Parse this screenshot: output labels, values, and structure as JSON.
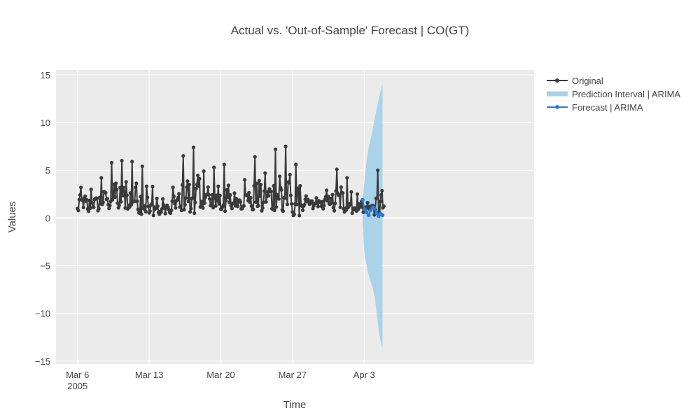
{
  "chart_data": {
    "type": "line",
    "title": "Actual vs. 'Out-of-Sample' Forecast | CO(GT)",
    "xlabel": "Time",
    "ylabel": "Values",
    "x_range_days": [
      -2.1,
      44.6
    ],
    "ylim": [
      -15.3,
      15.5
    ],
    "y_ticks": [
      15,
      10,
      5,
      0,
      -5,
      -10,
      -15
    ],
    "y_tick_labels": [
      "15",
      "10",
      "5",
      "0",
      "−5",
      "−10",
      "−15"
    ],
    "x_ticks": [
      {
        "day": 0,
        "label": "Mar 6",
        "sublabel": "2005"
      },
      {
        "day": 7,
        "label": "Mar 13",
        "sublabel": ""
      },
      {
        "day": 14,
        "label": "Mar 20",
        "sublabel": ""
      },
      {
        "day": 21,
        "label": "Mar 27",
        "sublabel": ""
      },
      {
        "day": 28,
        "label": "Apr 3",
        "sublabel": ""
      }
    ],
    "x_origin": "2005-03-06",
    "legend": {
      "position": "top-right",
      "items": [
        {
          "label": "Original",
          "kind": "line-marker",
          "color": "#3a3a3a"
        },
        {
          "label": "Prediction Interval | ARIMA",
          "kind": "band",
          "color": "#a6d2ea"
        },
        {
          "label": "Forecast | ARIMA",
          "kind": "line-marker",
          "color": "#2b7bd6"
        }
      ]
    },
    "original_daily": [
      {
        "day": 0,
        "mean": 1.8,
        "peak": 3.2,
        "low": 0.6
      },
      {
        "day": 1,
        "mean": 1.4,
        "peak": 3.0,
        "low": 0.5
      },
      {
        "day": 2,
        "mean": 1.6,
        "peak": 4.2,
        "low": 0.7
      },
      {
        "day": 3,
        "mean": 2.2,
        "peak": 5.8,
        "low": 0.9
      },
      {
        "day": 4,
        "mean": 2.3,
        "peak": 6.0,
        "low": 0.8
      },
      {
        "day": 5,
        "mean": 2.1,
        "peak": 5.9,
        "low": 0.9
      },
      {
        "day": 6,
        "mean": 1.9,
        "peak": 5.4,
        "low": 0.4
      },
      {
        "day": 7,
        "mean": 1.2,
        "peak": 3.3,
        "low": 0.2
      },
      {
        "day": 8,
        "mean": 0.9,
        "peak": 2.0,
        "low": 0.1
      },
      {
        "day": 9,
        "mean": 1.0,
        "peak": 3.2,
        "low": 0.1
      },
      {
        "day": 10,
        "mean": 2.0,
        "peak": 6.5,
        "low": 0.8
      },
      {
        "day": 11,
        "mean": 2.4,
        "peak": 7.4,
        "low": 0.5
      },
      {
        "day": 12,
        "mean": 2.2,
        "peak": 4.9,
        "low": 0.8
      },
      {
        "day": 13,
        "mean": 2.0,
        "peak": 5.3,
        "low": 0.9
      },
      {
        "day": 14,
        "mean": 1.9,
        "peak": 5.6,
        "low": 0.7
      },
      {
        "day": 15,
        "mean": 1.5,
        "peak": 2.6,
        "low": 0.8
      },
      {
        "day": 16,
        "mean": 1.8,
        "peak": 4.0,
        "low": 0.9
      },
      {
        "day": 17,
        "mean": 2.2,
        "peak": 6.4,
        "low": 0.7
      },
      {
        "day": 18,
        "mean": 2.0,
        "peak": 4.7,
        "low": 0.6
      },
      {
        "day": 19,
        "mean": 2.4,
        "peak": 7.2,
        "low": 0.8
      },
      {
        "day": 20,
        "mean": 2.5,
        "peak": 7.5,
        "low": 0.5
      },
      {
        "day": 21,
        "mean": 1.8,
        "peak": 5.6,
        "low": 0.1
      },
      {
        "day": 22,
        "mean": 1.6,
        "peak": 2.3,
        "low": 0.7
      },
      {
        "day": 23,
        "mean": 1.4,
        "peak": 2.1,
        "low": 0.8
      },
      {
        "day": 24,
        "mean": 1.6,
        "peak": 2.9,
        "low": 0.8
      },
      {
        "day": 25,
        "mean": 2.0,
        "peak": 5.1,
        "low": 0.6
      },
      {
        "day": 26,
        "mean": 1.8,
        "peak": 4.2,
        "low": 0.5
      },
      {
        "day": 27,
        "mean": 1.3,
        "peak": 2.5,
        "low": 0.5
      },
      {
        "day": 28,
        "mean": 1.0,
        "peak": 1.6,
        "low": 0.6
      },
      {
        "day": 29,
        "mean": 1.3,
        "peak": 5.0,
        "low": 0.3
      }
    ],
    "forecast": {
      "start_day": 27.85,
      "end_day": 29.8,
      "mean": [
        1.9,
        0.9,
        0.6,
        0.3,
        0.8,
        1.1,
        1.0,
        0.5,
        0.2,
        0.4,
        0.3
      ],
      "upper": [
        1.8,
        4.0,
        6.0,
        7.3,
        8.3,
        9.2,
        10.3,
        11.4,
        12.3,
        13.3,
        14.0
      ],
      "lower": [
        -0.5,
        -4.0,
        -5.0,
        -6.0,
        -6.6,
        -7.3,
        -8.2,
        -9.8,
        -11.6,
        -12.9,
        -13.6
      ]
    }
  }
}
